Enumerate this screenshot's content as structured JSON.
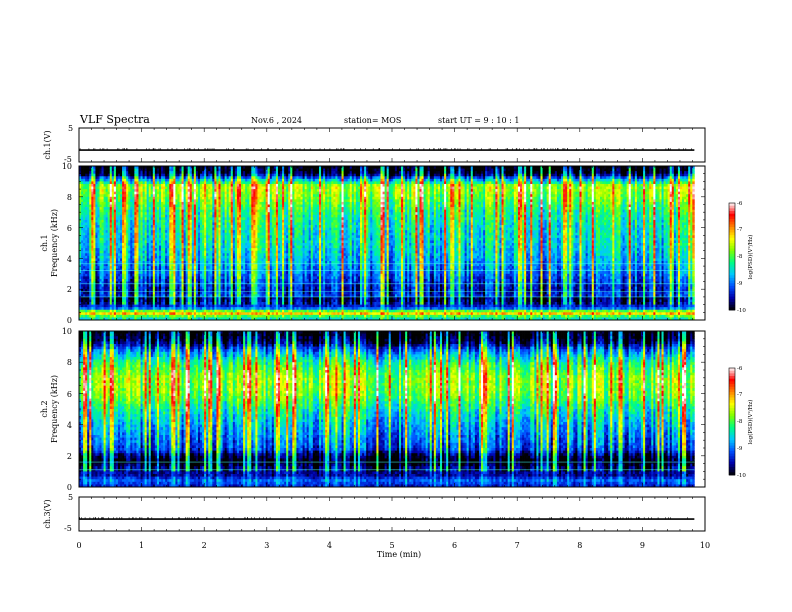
{
  "header": {
    "title": "VLF Spectra",
    "date": "Nov.6 , 2024",
    "station": "station= MOS",
    "start": "start UT = 9 : 10 : 1"
  },
  "chart_data": [
    {
      "type": "line",
      "ylabel": "ch.1(V)",
      "ylim": [
        -5,
        5
      ],
      "yticks": [
        "5",
        "-5"
      ],
      "xlim": [
        0,
        10
      ],
      "trace_level": -1.5
    },
    {
      "type": "heatmap",
      "ylabel_top": "ch.1",
      "ylabel": "Frequency (kHz)",
      "ylim": [
        0,
        10
      ],
      "yticks": [
        "0",
        "2",
        "4",
        "6",
        "8",
        "10"
      ],
      "xlim": [
        0,
        10
      ],
      "data_end": 9.83,
      "colorbar": {
        "label": "log(PSD)(V²/Hz)",
        "ticks": [
          "-6",
          "-7",
          "-8",
          "-9",
          "-10"
        ],
        "range": [
          -10,
          -6
        ]
      },
      "profile": [
        {
          "f": 0.0,
          "v": -8.6
        },
        {
          "f": 0.25,
          "v": -8.0
        },
        {
          "f": 0.45,
          "v": -7.0
        },
        {
          "f": 0.6,
          "v": -8.0
        },
        {
          "f": 0.8,
          "v": -9.3
        },
        {
          "f": 1.1,
          "v": -9.4
        },
        {
          "f": 1.4,
          "v": -9.6
        },
        {
          "f": 1.6,
          "v": -9.0
        },
        {
          "f": 1.9,
          "v": -9.2
        },
        {
          "f": 2.3,
          "v": -9.1
        },
        {
          "f": 3.0,
          "v": -8.8
        },
        {
          "f": 4.0,
          "v": -8.5
        },
        {
          "f": 5.0,
          "v": -8.3
        },
        {
          "f": 6.0,
          "v": -8.2
        },
        {
          "f": 7.0,
          "v": -8.0
        },
        {
          "f": 8.0,
          "v": -7.6
        },
        {
          "f": 8.7,
          "v": -7.4
        },
        {
          "f": 9.2,
          "v": -8.8
        },
        {
          "f": 9.5,
          "v": -9.7
        },
        {
          "f": 10.0,
          "v": -10.0
        }
      ],
      "lines_kHz": [
        1.5,
        1.85,
        2.35,
        3.2,
        3.65
      ]
    },
    {
      "type": "heatmap",
      "ylabel_top": "ch.2",
      "ylabel": "Frequency (kHz)",
      "ylim": [
        0,
        10
      ],
      "yticks": [
        "0",
        "2",
        "4",
        "6",
        "8",
        "10"
      ],
      "xlim": [
        0,
        10
      ],
      "data_end": 9.83,
      "colorbar": {
        "label": "log(PSD)(V²/Hz)",
        "ticks": [
          "-6",
          "-7",
          "-8",
          "-9",
          "-10"
        ],
        "range": [
          -10,
          -6
        ]
      },
      "profile": [
        {
          "f": 0.0,
          "v": -9.4
        },
        {
          "f": 0.4,
          "v": -9.0
        },
        {
          "f": 0.8,
          "v": -9.6
        },
        {
          "f": 1.2,
          "v": -9.4
        },
        {
          "f": 1.6,
          "v": -9.9
        },
        {
          "f": 2.0,
          "v": -9.6
        },
        {
          "f": 2.4,
          "v": -9.0
        },
        {
          "f": 3.0,
          "v": -8.8
        },
        {
          "f": 4.0,
          "v": -8.5
        },
        {
          "f": 5.0,
          "v": -8.1
        },
        {
          "f": 6.0,
          "v": -7.6
        },
        {
          "f": 7.0,
          "v": -7.5
        },
        {
          "f": 8.0,
          "v": -8.0
        },
        {
          "f": 8.8,
          "v": -8.8
        },
        {
          "f": 9.3,
          "v": -9.6
        },
        {
          "f": 10.0,
          "v": -10.0
        }
      ],
      "lines_kHz": [
        1.1,
        1.6
      ]
    },
    {
      "type": "line",
      "ylabel": "ch.3(V)",
      "ylim": [
        -5,
        5
      ],
      "yticks": [
        "5",
        "-5"
      ],
      "xlim": [
        0,
        10
      ],
      "trace_level": -1.5,
      "xlabel": "Time (min)",
      "xticks": [
        "0",
        "1",
        "2",
        "3",
        "4",
        "5",
        "6",
        "7",
        "8",
        "9",
        "10"
      ]
    }
  ],
  "colors": {
    "scale": [
      "#000000",
      "#0000aa",
      "#0050ff",
      "#00c8ff",
      "#00ff80",
      "#80ff00",
      "#ffff00",
      "#ff8000",
      "#ff0000",
      "#ffffff"
    ]
  }
}
